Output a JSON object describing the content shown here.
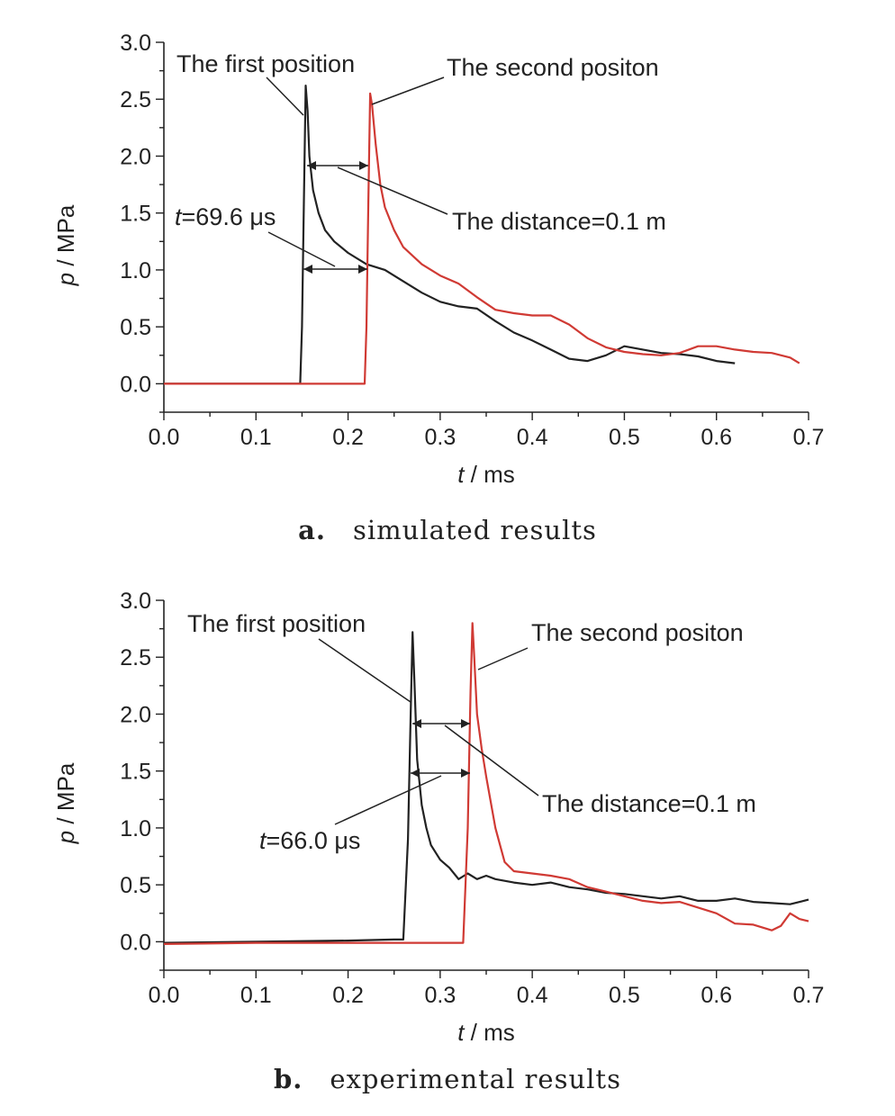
{
  "chart_data": [
    {
      "type": "line",
      "caption_letter": "a.",
      "caption_text": "simulated results",
      "xlabel": "t / ms",
      "ylabel": "p / MPa",
      "xlim": [
        0.0,
        0.7
      ],
      "ylim": [
        -0.25,
        3.0
      ],
      "xticks": [
        "0.0",
        "0.1",
        "0.2",
        "0.3",
        "0.4",
        "0.5",
        "0.6",
        "0.7"
      ],
      "yticks": [
        "0.0",
        "0.5",
        "1.0",
        "1.5",
        "2.0",
        "2.5",
        "3.0"
      ],
      "grid": false,
      "series": [
        {
          "color": "#222222",
          "x": [
            0.0,
            0.148,
            0.15,
            0.152,
            0.154,
            0.156,
            0.158,
            0.162,
            0.168,
            0.175,
            0.185,
            0.2,
            0.22,
            0.24,
            0.26,
            0.28,
            0.3,
            0.32,
            0.34,
            0.36,
            0.38,
            0.4,
            0.42,
            0.44,
            0.46,
            0.48,
            0.5,
            0.52,
            0.54,
            0.56,
            0.58,
            0.6,
            0.62
          ],
          "y": [
            0.0,
            0.0,
            0.5,
            1.6,
            2.62,
            2.4,
            2.0,
            1.7,
            1.5,
            1.35,
            1.25,
            1.15,
            1.05,
            1.0,
            0.9,
            0.8,
            0.72,
            0.68,
            0.66,
            0.55,
            0.45,
            0.38,
            0.3,
            0.22,
            0.2,
            0.25,
            0.33,
            0.3,
            0.27,
            0.26,
            0.24,
            0.2,
            0.18
          ]
        },
        {
          "color": "#d03a34",
          "x": [
            0.0,
            0.218,
            0.22,
            0.222,
            0.224,
            0.226,
            0.23,
            0.235,
            0.24,
            0.25,
            0.26,
            0.28,
            0.3,
            0.32,
            0.34,
            0.36,
            0.38,
            0.4,
            0.42,
            0.44,
            0.46,
            0.48,
            0.5,
            0.52,
            0.54,
            0.56,
            0.58,
            0.6,
            0.62,
            0.64,
            0.66,
            0.68,
            0.69
          ],
          "y": [
            0.0,
            0.0,
            0.5,
            1.6,
            2.55,
            2.45,
            2.1,
            1.75,
            1.55,
            1.35,
            1.2,
            1.05,
            0.95,
            0.88,
            0.76,
            0.65,
            0.62,
            0.6,
            0.6,
            0.52,
            0.4,
            0.32,
            0.28,
            0.26,
            0.25,
            0.27,
            0.33,
            0.33,
            0.3,
            0.28,
            0.27,
            0.23,
            0.18
          ]
        }
      ],
      "annotations": {
        "first": "The first position",
        "second": "The second positon",
        "distance": "The distance=0.1 m",
        "time_var": "t",
        "time_value": "=69.6 μs"
      }
    },
    {
      "type": "line",
      "caption_letter": "b.",
      "caption_text": "experimental results",
      "xlabel": "t / ms",
      "ylabel": "p / MPa",
      "xlim": [
        0.0,
        0.7
      ],
      "ylim": [
        -0.25,
        3.0
      ],
      "xticks": [
        "0.0",
        "0.1",
        "0.2",
        "0.3",
        "0.4",
        "0.5",
        "0.6",
        "0.7"
      ],
      "yticks": [
        "0.0",
        "0.5",
        "1.0",
        "1.5",
        "2.0",
        "2.5",
        "3.0"
      ],
      "grid": false,
      "series": [
        {
          "color": "#222222",
          "x": [
            0.0,
            0.1,
            0.2,
            0.25,
            0.26,
            0.265,
            0.268,
            0.27,
            0.272,
            0.275,
            0.28,
            0.285,
            0.29,
            0.3,
            0.31,
            0.32,
            0.33,
            0.34,
            0.35,
            0.36,
            0.38,
            0.4,
            0.42,
            0.44,
            0.46,
            0.48,
            0.5,
            0.52,
            0.54,
            0.56,
            0.58,
            0.6,
            0.62,
            0.64,
            0.66,
            0.68,
            0.7
          ],
          "y": [
            -0.01,
            0.0,
            0.01,
            0.02,
            0.02,
            0.9,
            2.0,
            2.72,
            2.3,
            1.6,
            1.2,
            1.0,
            0.85,
            0.72,
            0.65,
            0.55,
            0.6,
            0.55,
            0.58,
            0.55,
            0.52,
            0.5,
            0.52,
            0.48,
            0.46,
            0.43,
            0.42,
            0.4,
            0.38,
            0.4,
            0.36,
            0.36,
            0.38,
            0.35,
            0.34,
            0.33,
            0.37
          ]
        },
        {
          "color": "#d03a34",
          "x": [
            0.0,
            0.1,
            0.2,
            0.3,
            0.325,
            0.33,
            0.333,
            0.335,
            0.337,
            0.34,
            0.345,
            0.35,
            0.36,
            0.37,
            0.38,
            0.4,
            0.42,
            0.44,
            0.46,
            0.48,
            0.5,
            0.52,
            0.54,
            0.56,
            0.58,
            0.6,
            0.62,
            0.64,
            0.66,
            0.67,
            0.68,
            0.69,
            0.7
          ],
          "y": [
            -0.02,
            -0.01,
            -0.01,
            -0.01,
            -0.01,
            1.0,
            2.2,
            2.8,
            2.5,
            2.0,
            1.7,
            1.45,
            1.0,
            0.7,
            0.62,
            0.6,
            0.58,
            0.55,
            0.48,
            0.44,
            0.4,
            0.36,
            0.34,
            0.35,
            0.3,
            0.25,
            0.16,
            0.15,
            0.1,
            0.14,
            0.25,
            0.2,
            0.18
          ]
        }
      ],
      "annotations": {
        "first": "The first position",
        "second": "The second positon",
        "distance": "The distance=0.1 m",
        "time_var": "t",
        "time_value": "=66.0 μs"
      }
    }
  ]
}
